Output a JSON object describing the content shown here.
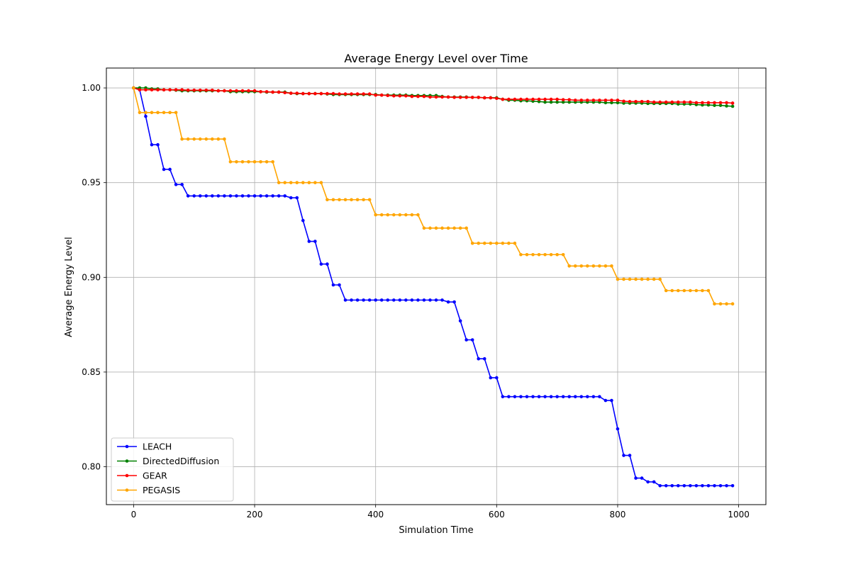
{
  "chart_data": {
    "type": "line",
    "title": "Average Energy Level over Time",
    "xlabel": "Simulation Time",
    "ylabel": "Average Energy Level",
    "xlim": [
      -45,
      1045
    ],
    "ylim": [
      0.78,
      1.0105
    ],
    "xticks": [
      0,
      200,
      400,
      600,
      800,
      1000
    ],
    "yticks": [
      0.8,
      0.85,
      0.9,
      0.95,
      1.0
    ],
    "xtick_labels": [
      "0",
      "200",
      "400",
      "600",
      "800",
      "1000"
    ],
    "ytick_labels": [
      "0.80",
      "0.85",
      "0.90",
      "0.95",
      "1.00"
    ],
    "grid": true,
    "legend_position": "lower-left",
    "x": [
      0,
      10,
      20,
      30,
      40,
      50,
      60,
      70,
      80,
      90,
      100,
      110,
      120,
      130,
      140,
      150,
      160,
      170,
      180,
      190,
      200,
      210,
      220,
      230,
      240,
      250,
      260,
      270,
      280,
      290,
      300,
      310,
      320,
      330,
      340,
      350,
      360,
      370,
      380,
      390,
      400,
      410,
      420,
      430,
      440,
      450,
      460,
      470,
      480,
      490,
      500,
      510,
      520,
      530,
      540,
      550,
      560,
      570,
      580,
      590,
      600,
      610,
      620,
      630,
      640,
      650,
      660,
      670,
      680,
      690,
      700,
      710,
      720,
      730,
      740,
      750,
      760,
      770,
      780,
      790,
      800,
      810,
      820,
      830,
      840,
      850,
      860,
      870,
      880,
      890,
      900,
      910,
      920,
      930,
      940,
      950,
      960,
      970,
      980,
      990
    ],
    "series": [
      {
        "name": "LEACH",
        "color": "#0000ff",
        "values": [
          1.0,
          0.999,
          0.985,
          0.97,
          0.97,
          0.957,
          0.957,
          0.949,
          0.949,
          0.943,
          0.943,
          0.943,
          0.943,
          0.943,
          0.943,
          0.943,
          0.943,
          0.943,
          0.943,
          0.943,
          0.943,
          0.943,
          0.943,
          0.943,
          0.943,
          0.943,
          0.942,
          0.942,
          0.93,
          0.919,
          0.919,
          0.907,
          0.907,
          0.896,
          0.896,
          0.888,
          0.888,
          0.888,
          0.888,
          0.888,
          0.888,
          0.888,
          0.888,
          0.888,
          0.888,
          0.888,
          0.888,
          0.888,
          0.888,
          0.888,
          0.888,
          0.888,
          0.887,
          0.887,
          0.877,
          0.867,
          0.867,
          0.857,
          0.857,
          0.847,
          0.847,
          0.837,
          0.837,
          0.837,
          0.837,
          0.837,
          0.837,
          0.837,
          0.837,
          0.837,
          0.837,
          0.837,
          0.837,
          0.837,
          0.837,
          0.837,
          0.837,
          0.837,
          0.835,
          0.835,
          0.82,
          0.806,
          0.806,
          0.794,
          0.794,
          0.792,
          0.792,
          0.79,
          0.79,
          0.79,
          0.79,
          0.79,
          0.79,
          0.79,
          0.79,
          0.79,
          0.79,
          0.79,
          0.79,
          0.79
        ]
      },
      {
        "name": "DirectedDiffusion",
        "color": "#008000",
        "values": [
          1.0,
          1.0,
          1.0,
          0.9995,
          0.9995,
          0.999,
          0.999,
          0.9988,
          0.9985,
          0.9985,
          0.9985,
          0.9985,
          0.9985,
          0.9985,
          0.9985,
          0.9985,
          0.998,
          0.998,
          0.998,
          0.998,
          0.998,
          0.998,
          0.9978,
          0.9978,
          0.9978,
          0.9978,
          0.9972,
          0.997,
          0.997,
          0.997,
          0.997,
          0.997,
          0.9968,
          0.9965,
          0.9965,
          0.9965,
          0.9965,
          0.9965,
          0.9965,
          0.9965,
          0.9965,
          0.9962,
          0.9962,
          0.9962,
          0.9962,
          0.9962,
          0.996,
          0.996,
          0.996,
          0.996,
          0.996,
          0.9955,
          0.9952,
          0.9952,
          0.9952,
          0.9952,
          0.995,
          0.995,
          0.9948,
          0.9948,
          0.9948,
          0.994,
          0.9935,
          0.9935,
          0.9932,
          0.9932,
          0.993,
          0.9928,
          0.9925,
          0.9925,
          0.9925,
          0.9925,
          0.9925,
          0.9925,
          0.9925,
          0.9925,
          0.9925,
          0.9925,
          0.9922,
          0.9922,
          0.9922,
          0.992,
          0.992,
          0.992,
          0.992,
          0.9918,
          0.9918,
          0.9918,
          0.9918,
          0.9918,
          0.9915,
          0.9915,
          0.9915,
          0.9912,
          0.991,
          0.991,
          0.9908,
          0.9908,
          0.9905,
          0.9903
        ]
      },
      {
        "name": "GEAR",
        "color": "#ff0000",
        "values": [
          1.0,
          0.999,
          0.999,
          0.999,
          0.999,
          0.999,
          0.999,
          0.999,
          0.999,
          0.9988,
          0.9988,
          0.9988,
          0.9988,
          0.9988,
          0.9985,
          0.9985,
          0.9985,
          0.9985,
          0.9985,
          0.9985,
          0.9985,
          0.998,
          0.998,
          0.9978,
          0.9978,
          0.9975,
          0.9972,
          0.9972,
          0.997,
          0.997,
          0.997,
          0.997,
          0.997,
          0.997,
          0.9968,
          0.9968,
          0.9968,
          0.9968,
          0.9968,
          0.9968,
          0.9962,
          0.9962,
          0.996,
          0.9958,
          0.9958,
          0.9958,
          0.9955,
          0.9955,
          0.9955,
          0.9952,
          0.9952,
          0.9952,
          0.9952,
          0.995,
          0.995,
          0.995,
          0.995,
          0.995,
          0.9948,
          0.9948,
          0.9945,
          0.994,
          0.994,
          0.994,
          0.994,
          0.994,
          0.994,
          0.994,
          0.994,
          0.994,
          0.994,
          0.9938,
          0.9938,
          0.9935,
          0.9935,
          0.9935,
          0.9935,
          0.9935,
          0.9935,
          0.9935,
          0.9935,
          0.993,
          0.9928,
          0.9928,
          0.9928,
          0.9928,
          0.9925,
          0.9925,
          0.9925,
          0.9925,
          0.9925,
          0.9925,
          0.9925,
          0.9922,
          0.9922,
          0.9922,
          0.9922,
          0.9922,
          0.9922,
          0.992
        ]
      },
      {
        "name": "PEGASIS",
        "color": "#ffa500",
        "values": [
          1.0,
          0.987,
          0.987,
          0.987,
          0.987,
          0.987,
          0.987,
          0.987,
          0.973,
          0.973,
          0.973,
          0.973,
          0.973,
          0.973,
          0.973,
          0.973,
          0.961,
          0.961,
          0.961,
          0.961,
          0.961,
          0.961,
          0.961,
          0.961,
          0.95,
          0.95,
          0.95,
          0.95,
          0.95,
          0.95,
          0.95,
          0.95,
          0.941,
          0.941,
          0.941,
          0.941,
          0.941,
          0.941,
          0.941,
          0.941,
          0.933,
          0.933,
          0.933,
          0.933,
          0.933,
          0.933,
          0.933,
          0.933,
          0.926,
          0.926,
          0.926,
          0.926,
          0.926,
          0.926,
          0.926,
          0.926,
          0.918,
          0.918,
          0.918,
          0.918,
          0.918,
          0.918,
          0.918,
          0.918,
          0.912,
          0.912,
          0.912,
          0.912,
          0.912,
          0.912,
          0.912,
          0.912,
          0.906,
          0.906,
          0.906,
          0.906,
          0.906,
          0.906,
          0.906,
          0.906,
          0.899,
          0.899,
          0.899,
          0.899,
          0.899,
          0.899,
          0.899,
          0.899,
          0.893,
          0.893,
          0.893,
          0.893,
          0.893,
          0.893,
          0.893,
          0.893,
          0.886,
          0.886,
          0.886,
          0.886
        ]
      }
    ]
  }
}
